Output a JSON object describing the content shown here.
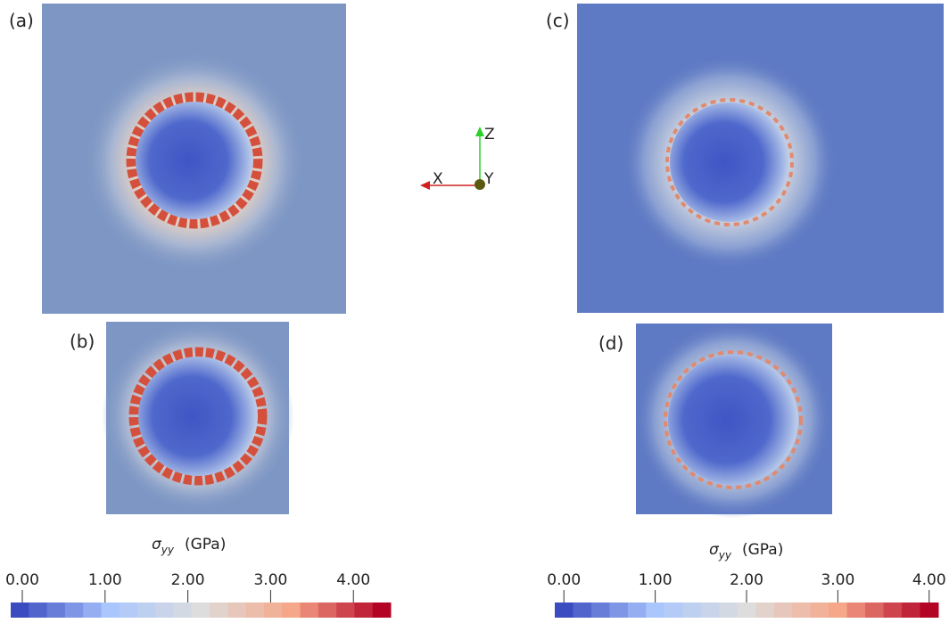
{
  "panels": [
    {
      "label": "(a)"
    },
    {
      "label": "(b)"
    },
    {
      "label": "(c)"
    },
    {
      "label": "(d)"
    }
  ],
  "axes_triad": {
    "z": "Z",
    "x": "X",
    "y": "Y"
  },
  "colorbars": [
    {
      "title_symbol": "σ",
      "title_subscript": "yy",
      "title_unit": "(GPa)",
      "lim": [
        -0.14,
        4.45
      ],
      "ticks": [
        {
          "value": 0,
          "label": "0.00"
        },
        {
          "value": 1,
          "label": "1.00"
        },
        {
          "value": 2,
          "label": "2.00"
        },
        {
          "value": 3,
          "label": "3.00"
        },
        {
          "value": 4,
          "label": "4.00"
        }
      ]
    },
    {
      "title_symbol": "σ",
      "title_subscript": "yy",
      "title_unit": "(GPa)",
      "lim": [
        -0.1,
        4.1
      ],
      "ticks": [
        {
          "value": 0,
          "label": "0.00"
        },
        {
          "value": 1,
          "label": "1.00"
        },
        {
          "value": 2,
          "label": "2.00"
        },
        {
          "value": 3,
          "label": "3.00"
        },
        {
          "value": 4,
          "label": "4.00"
        }
      ]
    }
  ]
}
